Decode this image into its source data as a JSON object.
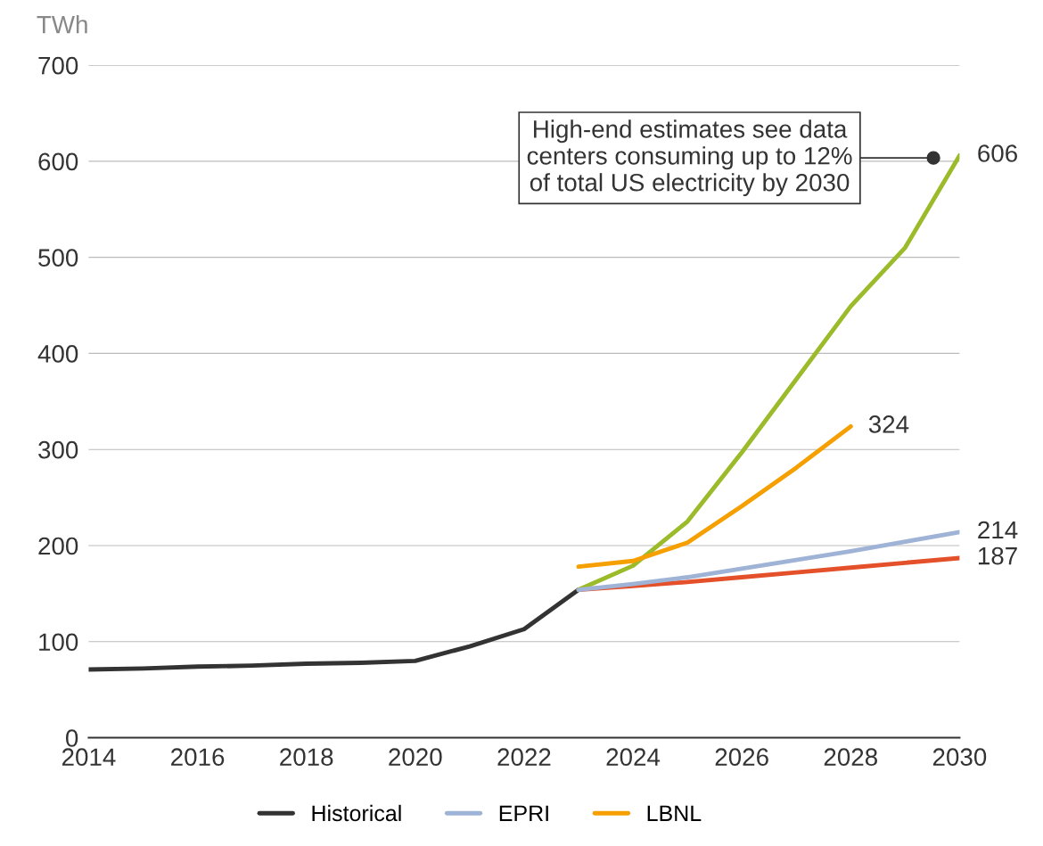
{
  "chart_data": {
    "type": "line",
    "ylabel": "TWh",
    "ylim": [
      0,
      700
    ],
    "yticks": [
      0,
      100,
      200,
      300,
      400,
      500,
      600,
      700
    ],
    "xlim": [
      2014,
      2030
    ],
    "xticks": [
      2014,
      2016,
      2018,
      2020,
      2022,
      2024,
      2026,
      2028,
      2030
    ],
    "grid": "y",
    "legend": "bottom",
    "marker": "none",
    "line_style": "solid",
    "series": [
      {
        "name": "Historical",
        "color": "#333333",
        "x": [
          2014,
          2015,
          2016,
          2017,
          2018,
          2019,
          2020,
          2021,
          2022,
          2023
        ],
        "values": [
          71,
          72,
          74,
          75,
          77,
          78,
          80,
          95,
          113,
          154
        ]
      },
      {
        "color": "#e4502a",
        "x": [
          2023,
          2024,
          2025,
          2026,
          2027,
          2028,
          2029,
          2030
        ],
        "values": [
          154,
          158,
          162,
          167,
          172,
          177,
          182,
          187
        ],
        "value_labels": [
          null,
          null,
          null,
          null,
          null,
          null,
          null,
          "187"
        ]
      },
      {
        "color": "#9bbb2a",
        "x": [
          2023,
          2024,
          2025,
          2026,
          2027,
          2028,
          2029,
          2030
        ],
        "values": [
          154,
          179,
          225,
          297,
          373,
          449,
          510,
          606
        ],
        "value_labels": [
          null,
          null,
          null,
          null,
          null,
          null,
          null,
          "606"
        ]
      },
      {
        "name": "EPRI",
        "color": "#9fb3d6",
        "x": [
          2023,
          2024,
          2025,
          2026,
          2027,
          2028,
          2029,
          2030
        ],
        "values": [
          154,
          160,
          167,
          176,
          185,
          194,
          204,
          214
        ],
        "value_labels": [
          null,
          null,
          null,
          null,
          null,
          null,
          null,
          "214"
        ]
      },
      {
        "name": "LBNL",
        "color": "#f5a000",
        "x": [
          2023,
          2024,
          2025,
          2026,
          2027,
          2028
        ],
        "values": [
          178,
          184,
          203,
          241,
          281,
          324
        ],
        "value_labels": [
          null,
          null,
          null,
          null,
          null,
          "324"
        ]
      }
    ],
    "annotations": [
      "High-end estimates see data\ncenters consuming up to 12%\nof total US electricity by 2030"
    ]
  }
}
